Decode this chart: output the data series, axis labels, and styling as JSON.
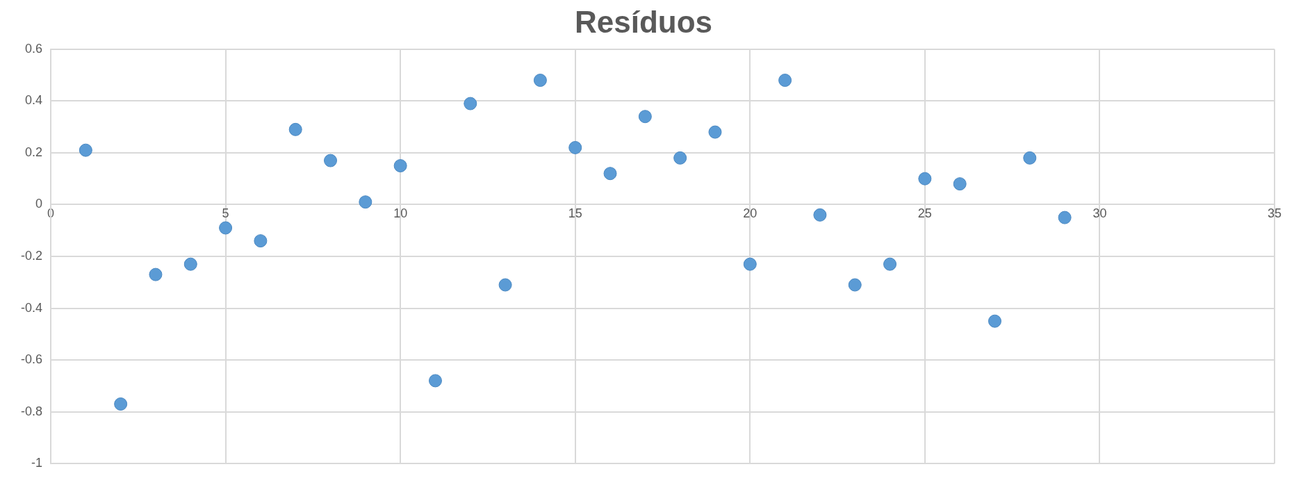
{
  "chart_data": {
    "type": "scatter",
    "title": "Resíduos",
    "x": [
      1,
      2,
      3,
      4,
      5,
      6,
      7,
      8,
      9,
      10,
      11,
      12,
      13,
      14,
      15,
      16,
      17,
      18,
      19,
      20,
      21,
      22,
      23,
      24,
      25,
      26,
      27,
      28,
      29
    ],
    "series": [
      {
        "color": "#5b9bd5",
        "values": [
          0.21,
          -0.77,
          -0.27,
          -0.23,
          -0.09,
          -0.14,
          0.29,
          0.17,
          0.01,
          0.15,
          -0.68,
          0.39,
          -0.31,
          0.48,
          0.22,
          0.12,
          0.34,
          0.18,
          0.28,
          -0.23,
          0.48,
          -0.04,
          -0.31,
          -0.23,
          0.1,
          0.08,
          -0.45,
          0.18,
          -0.05
        ]
      }
    ],
    "xlim": [
      0,
      35
    ],
    "xticks": [
      0,
      5,
      10,
      15,
      20,
      25,
      30,
      35
    ],
    "ylim": [
      -1,
      0.6
    ],
    "yticks": [
      -1,
      -0.8,
      -0.6,
      -0.4,
      -0.2,
      0,
      0.2,
      0.4,
      0.6
    ],
    "grid": true,
    "marker": "circle",
    "legend": false
  }
}
